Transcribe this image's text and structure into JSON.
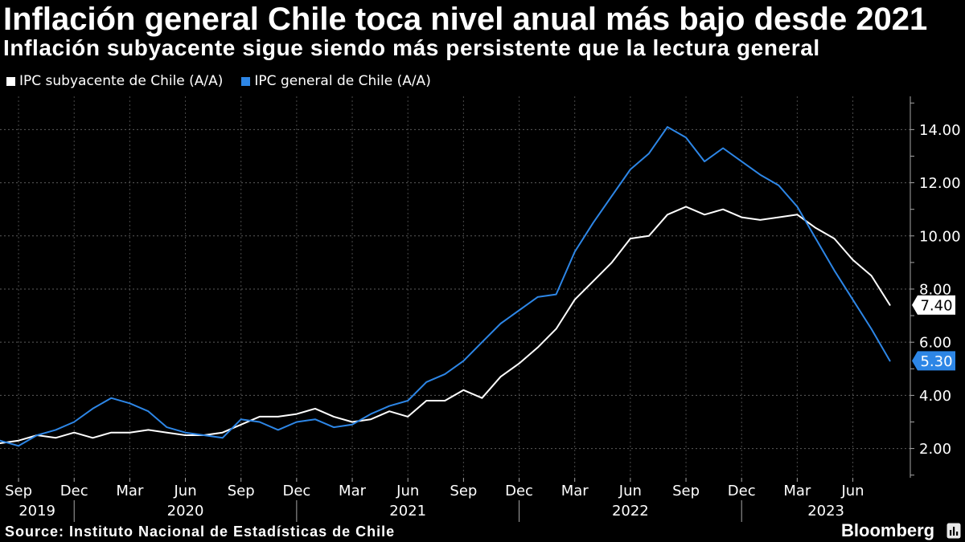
{
  "chart_data": {
    "type": "line",
    "title": "Inflación general Chile toca nivel anual más bajo desde 2021",
    "subtitle": "Inflación subyacente sigue siendo más persistente que la lectura general",
    "xlabel": "",
    "ylabel": "",
    "grid": true,
    "x": [
      0,
      1,
      2,
      3,
      4,
      5,
      6,
      7,
      8,
      9,
      10,
      11,
      12,
      13,
      14,
      15,
      16,
      17,
      18,
      19,
      20,
      21,
      22,
      23,
      24,
      25,
      26,
      27,
      28,
      29,
      30,
      31,
      32,
      33,
      34,
      35,
      36,
      37,
      38,
      39,
      40,
      41,
      42,
      43,
      44,
      45,
      46,
      47,
      48
    ],
    "xlim": [
      0,
      49.1
    ],
    "ylim": [
      0.9,
      15.25
    ],
    "x_ticks": [
      {
        "label": "Sep",
        "x": 1
      },
      {
        "label": "Dec",
        "x": 4
      },
      {
        "label": "Mar",
        "x": 7
      },
      {
        "label": "Jun",
        "x": 10
      },
      {
        "label": "Sep",
        "x": 13
      },
      {
        "label": "Dec",
        "x": 16
      },
      {
        "label": "Mar",
        "x": 19
      },
      {
        "label": "Jun",
        "x": 22
      },
      {
        "label": "Sep",
        "x": 25
      },
      {
        "label": "Dec",
        "x": 28
      },
      {
        "label": "Mar",
        "x": 31
      },
      {
        "label": "Jun",
        "x": 34
      },
      {
        "label": "Sep",
        "x": 37
      },
      {
        "label": "Dec",
        "x": 40
      },
      {
        "label": "Mar",
        "x": 43
      },
      {
        "label": "Jun",
        "x": 46
      }
    ],
    "year_labels": [
      "2019",
      "2020",
      "2021",
      "2022",
      "2023"
    ],
    "year_breaks": [
      4,
      16,
      28,
      40
    ],
    "y_ticks": [
      "2.00",
      "4.00",
      "6.00",
      "8.00",
      "10.00",
      "12.00",
      "14.00"
    ],
    "series": [
      {
        "name": "IPC subyacente de Chile (A/A)",
        "color": "#ffffff",
        "label_text_color": "#000000",
        "last_label": "7.40",
        "values": [
          2.2,
          2.3,
          2.5,
          2.4,
          2.6,
          2.4,
          2.6,
          2.6,
          2.7,
          2.6,
          2.5,
          2.5,
          2.6,
          2.9,
          3.2,
          3.2,
          3.3,
          3.5,
          3.2,
          3.0,
          3.1,
          3.4,
          3.2,
          3.8,
          3.8,
          4.2,
          3.9,
          4.7,
          5.2,
          5.8,
          6.5,
          7.6,
          8.3,
          9.0,
          9.9,
          10.0,
          10.8,
          11.1,
          10.8,
          11.0,
          10.7,
          10.6,
          10.7,
          10.8,
          10.3,
          9.9,
          9.1,
          8.5,
          7.4
        ]
      },
      {
        "name": "IPC general de Chile (A/A)",
        "color": "#2d86e6",
        "label_text_color": "#ffffff",
        "last_label": "5.30",
        "values": [
          2.3,
          2.1,
          2.5,
          2.7,
          3.0,
          3.5,
          3.9,
          3.7,
          3.4,
          2.8,
          2.6,
          2.5,
          2.4,
          3.1,
          3.0,
          2.7,
          3.0,
          3.1,
          2.8,
          2.9,
          3.3,
          3.6,
          3.8,
          4.5,
          4.8,
          5.3,
          6.0,
          6.7,
          7.2,
          7.7,
          7.8,
          9.4,
          10.5,
          11.5,
          12.5,
          13.1,
          14.1,
          13.7,
          12.8,
          13.3,
          12.8,
          12.3,
          11.9,
          11.1,
          9.9,
          8.7,
          7.6,
          6.5,
          5.3
        ]
      }
    ]
  },
  "footer": {
    "source": "Source: Instituto Nacional de Estadísticas de Chile",
    "brand": "Bloomberg",
    "brand_icon": "bloomberg-logo-icon"
  }
}
